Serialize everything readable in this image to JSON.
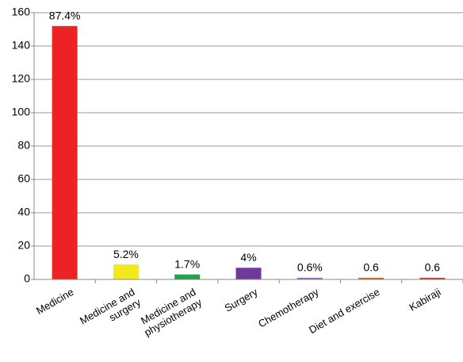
{
  "chart_data": {
    "type": "bar",
    "categories": [
      "Medicine",
      "Medicine and\nsurgery",
      "Medicine and\nphysiotherapy",
      "Surgery",
      "Chemotherapy",
      "Diet and exercise",
      "Kabiraji"
    ],
    "values": [
      152,
      9,
      3,
      7,
      1,
      1,
      1
    ],
    "colors": [
      "#ed2224",
      "#f2ea1e",
      "#27a048",
      "#6f3a9c",
      "#8d6fb8",
      "#c0682e",
      "#b5423b"
    ],
    "annotations": [
      "87.4%",
      "5.2%",
      "1.7%",
      "4%",
      "0.6%",
      "0.6",
      "0.6"
    ],
    "ylim": [
      0,
      160
    ],
    "yticks": [
      0,
      20,
      40,
      60,
      80,
      100,
      120,
      140,
      160
    ],
    "grid": true
  }
}
